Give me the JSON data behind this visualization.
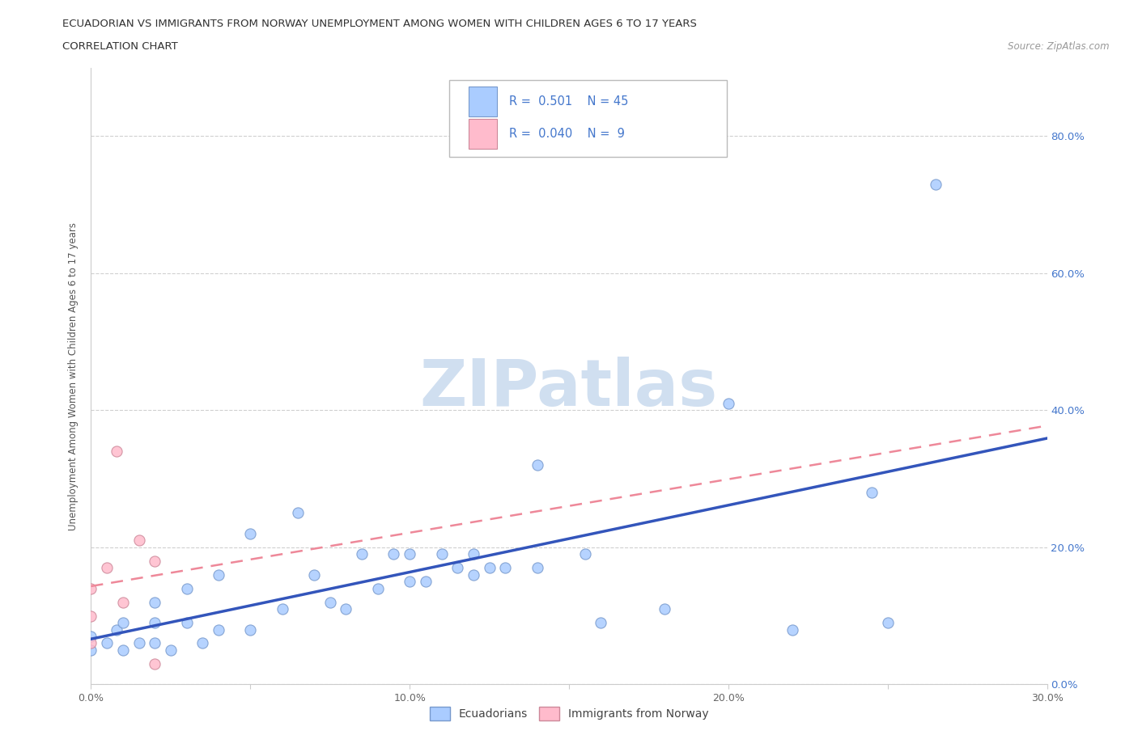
{
  "title_line1": "ECUADORIAN VS IMMIGRANTS FROM NORWAY UNEMPLOYMENT AMONG WOMEN WITH CHILDREN AGES 6 TO 17 YEARS",
  "title_line2": "CORRELATION CHART",
  "source_text": "Source: ZipAtlas.com",
  "ylabel": "Unemployment Among Women with Children Ages 6 to 17 years",
  "xlim": [
    0.0,
    0.3
  ],
  "ylim": [
    0.0,
    0.9
  ],
  "xtick_values": [
    0.0,
    0.05,
    0.1,
    0.15,
    0.2,
    0.25,
    0.3
  ],
  "xtick_labels": [
    "0.0%",
    "",
    "10.0%",
    "",
    "20.0%",
    "",
    "30.0%"
  ],
  "ytick_values": [
    0.0,
    0.2,
    0.4,
    0.6,
    0.8
  ],
  "ytick_right_labels": [
    "0.0%",
    "20.0%",
    "40.0%",
    "60.0%",
    "80.0%"
  ],
  "grid_color": "#d0d0d0",
  "grid_style": "--",
  "background_color": "#ffffff",
  "watermark_text": "ZIPatlas",
  "watermark_color": "#d0dff0",
  "ecuador_color": "#aaccff",
  "ecuador_edge": "#7799cc",
  "norway_color": "#ffbbcc",
  "norway_edge": "#cc8899",
  "ecuador_R": 0.501,
  "ecuador_N": 45,
  "norway_R": 0.04,
  "norway_N": 9,
  "ecuador_points_x": [
    0.0,
    0.0,
    0.005,
    0.008,
    0.01,
    0.01,
    0.015,
    0.02,
    0.02,
    0.02,
    0.025,
    0.03,
    0.03,
    0.035,
    0.04,
    0.04,
    0.05,
    0.05,
    0.06,
    0.065,
    0.07,
    0.075,
    0.08,
    0.085,
    0.09,
    0.095,
    0.1,
    0.1,
    0.105,
    0.11,
    0.115,
    0.12,
    0.12,
    0.125,
    0.13,
    0.14,
    0.14,
    0.155,
    0.16,
    0.18,
    0.2,
    0.22,
    0.245,
    0.25,
    0.265
  ],
  "ecuador_points_y": [
    0.05,
    0.07,
    0.06,
    0.08,
    0.05,
    0.09,
    0.06,
    0.06,
    0.09,
    0.12,
    0.05,
    0.09,
    0.14,
    0.06,
    0.08,
    0.16,
    0.08,
    0.22,
    0.11,
    0.25,
    0.16,
    0.12,
    0.11,
    0.19,
    0.14,
    0.19,
    0.15,
    0.19,
    0.15,
    0.19,
    0.17,
    0.16,
    0.19,
    0.17,
    0.17,
    0.17,
    0.32,
    0.19,
    0.09,
    0.11,
    0.41,
    0.08,
    0.28,
    0.09,
    0.73
  ],
  "norway_points_x": [
    0.0,
    0.0,
    0.0,
    0.005,
    0.008,
    0.01,
    0.015,
    0.02,
    0.02
  ],
  "norway_points_y": [
    0.06,
    0.1,
    0.14,
    0.17,
    0.34,
    0.12,
    0.21,
    0.18,
    0.03
  ],
  "ecuador_line_color": "#3355bb",
  "norway_line_color": "#ee8899",
  "right_label_color": "#4477cc",
  "legend_label_color": "#4477cc"
}
